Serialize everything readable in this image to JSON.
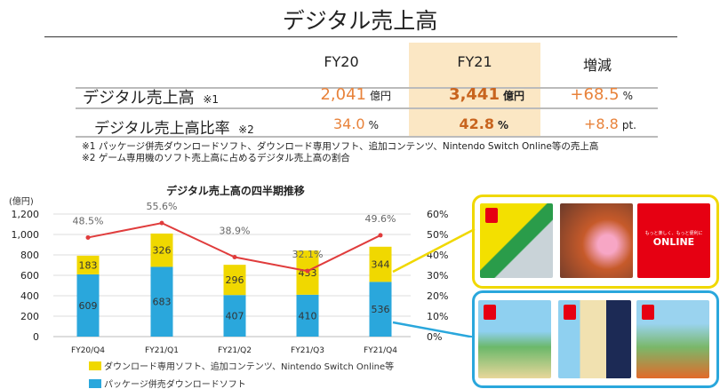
{
  "title": "デジタル売上高",
  "table": {
    "headers": [
      "FY20",
      "FY21",
      "増減"
    ],
    "rows": [
      {
        "label": "デジタル売上高",
        "note": "※1",
        "fy20": "2,041",
        "fy20_unit": "億円",
        "fy21": "3,441",
        "fy21_unit": "億円",
        "change": "+68.5",
        "change_unit": "%"
      },
      {
        "label": "デジタル売上高比率",
        "note": "※2",
        "fy20": "34.0",
        "fy20_unit": "%",
        "fy21": "42.8",
        "fy21_unit": "%",
        "change": "+8.8",
        "change_unit": "pt."
      }
    ],
    "footnotes": [
      "※1 パッケージ併売ダウンロードソフト、ダウンロード専用ソフト、追加コンテンツ、Nintendo Switch Online等の売上高",
      "※2 ゲーム専用機のソフト売上高に占めるデジタル売上高の割合"
    ]
  },
  "chart_data": {
    "type": "bar",
    "stacked": true,
    "title": "デジタル売上高の四半期推移",
    "ylabel": "(億円)",
    "categories": [
      "FY20/Q4",
      "FY21/Q1",
      "FY21/Q2",
      "FY21/Q3",
      "FY21/Q4"
    ],
    "ylim": [
      0,
      1200
    ],
    "yticks": [
      "0",
      "200",
      "400",
      "600",
      "800",
      "1,000",
      "1,200"
    ],
    "y2lim": [
      0,
      60
    ],
    "y2ticks": [
      "0%",
      "10%",
      "20%",
      "30%",
      "40%",
      "50%",
      "60%"
    ],
    "grid": true,
    "legend_position": "bottom",
    "series": [
      {
        "name": "パッケージ併売ダウンロードソフト",
        "type": "bar",
        "color": "#2aa7dc",
        "values": [
          609,
          683,
          407,
          410,
          536
        ]
      },
      {
        "name": "ダウンロード専用ソフト、追加コンテンツ、Nintendo Switch Online等",
        "type": "bar",
        "color": "#f0d800",
        "values": [
          183,
          326,
          296,
          433,
          344
        ]
      },
      {
        "type": "line",
        "axis": "right",
        "color": "#e03c3c",
        "values": [
          48.5,
          55.6,
          38.9,
          32.1,
          49.6
        ],
        "labels": [
          "48.5%",
          "55.6%",
          "38.9%",
          "32.1%",
          "49.6%"
        ]
      }
    ]
  },
  "callouts": {
    "yellow_color": "#f0d800",
    "blue_color": "#2aa7dc",
    "online_tile": {
      "tagline": "もっと楽しく、もっと便利に",
      "logo": "ONLINE"
    }
  }
}
